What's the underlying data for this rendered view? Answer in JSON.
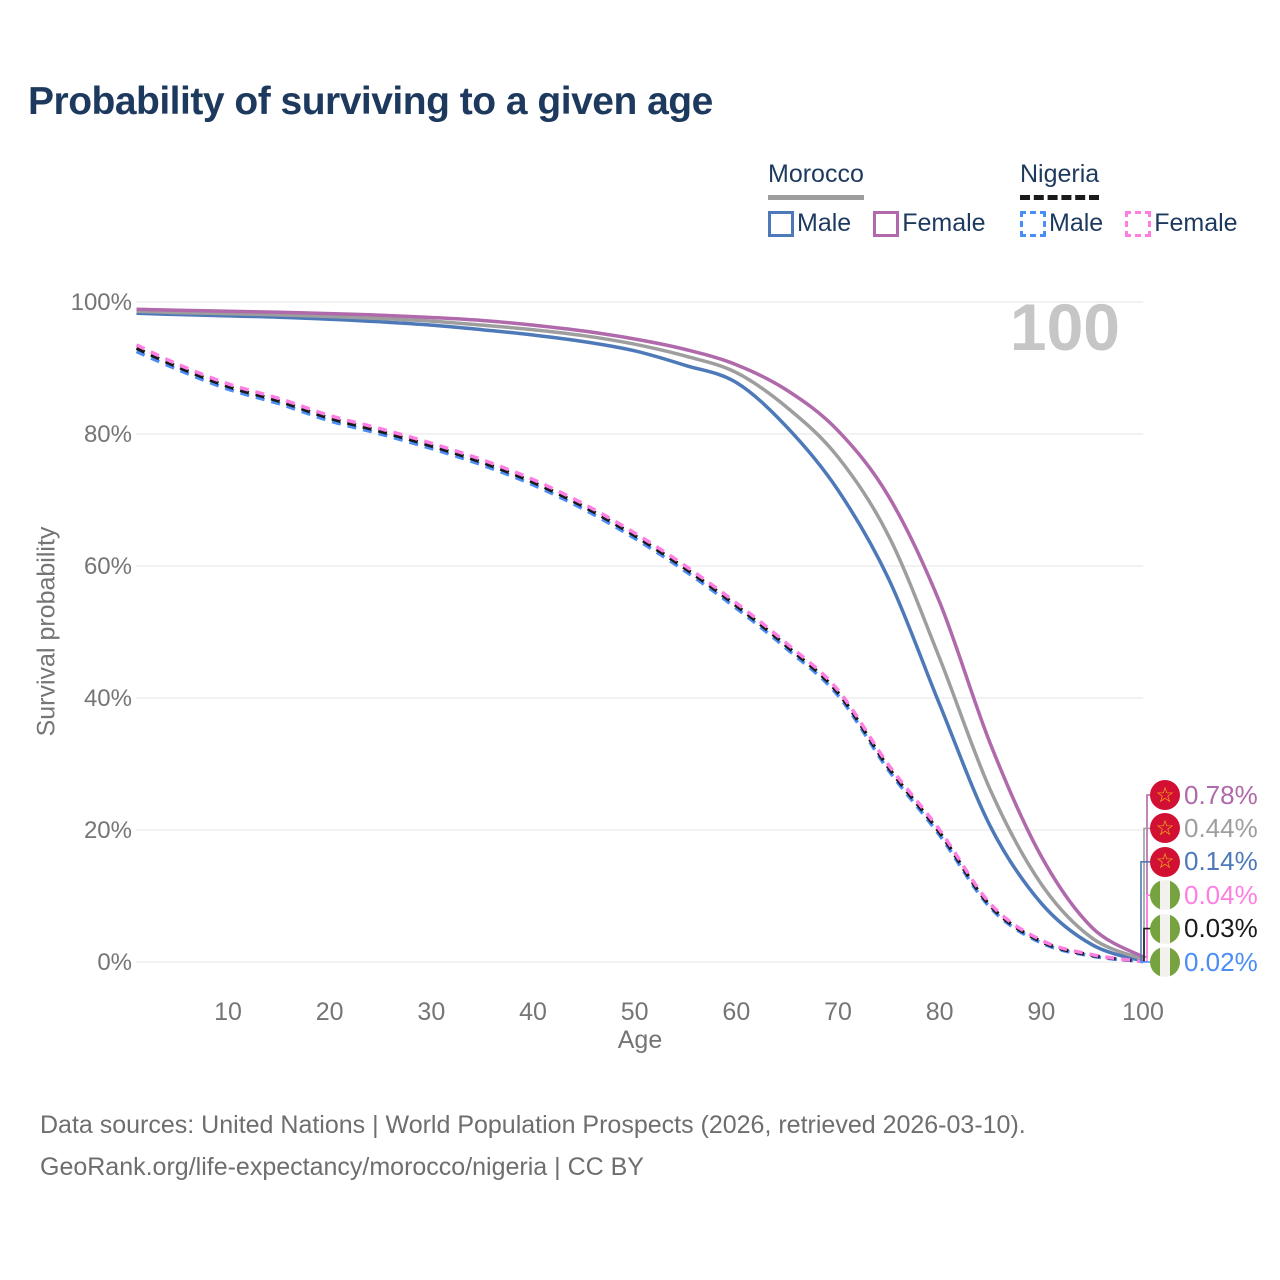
{
  "header": {
    "title": "Probability of surviving to a given age"
  },
  "watermark": "100",
  "legend": {
    "groups": [
      {
        "country": "Morocco",
        "line_style": "solid",
        "items": [
          {
            "label": "Male",
            "color": "#4e79b9"
          },
          {
            "label": "Female",
            "color": "#b069ab"
          }
        ]
      },
      {
        "country": "Nigeria",
        "line_style": "dashed",
        "items": [
          {
            "label": "Male",
            "color": "#4a8df5"
          },
          {
            "label": "Female",
            "color": "#ff7ee3"
          }
        ]
      }
    ]
  },
  "chart_data": {
    "type": "line",
    "title": "Probability of surviving to a given age",
    "xlabel": "Age",
    "ylabel": "Survival probability",
    "xlim": [
      1,
      100
    ],
    "ylim": [
      0,
      100
    ],
    "grid": "horizontal",
    "legend_position": "top-right",
    "x_tick_values": [
      10,
      20,
      30,
      40,
      50,
      60,
      70,
      80,
      90,
      100
    ],
    "x_tick_labels": [
      "10",
      "20",
      "30",
      "40",
      "50",
      "60",
      "70",
      "80",
      "90",
      "100"
    ],
    "y_ticks": [
      0,
      20,
      40,
      60,
      80,
      100
    ],
    "y_tick_labels": [
      "0%",
      "20%",
      "40%",
      "60%",
      "80%",
      "100%"
    ],
    "x": [
      1,
      5,
      10,
      15,
      20,
      25,
      30,
      35,
      40,
      45,
      50,
      55,
      60,
      65,
      70,
      75,
      80,
      85,
      90,
      95,
      100
    ],
    "series": [
      {
        "name": "Morocco Male",
        "country": "Morocco",
        "sex": "Male",
        "style": "solid",
        "color": "#4e79b9",
        "end_value": "0.14%",
        "values": [
          98.3,
          98.1,
          97.9,
          97.7,
          97.4,
          97.0,
          96.5,
          95.8,
          95.0,
          94.0,
          92.6,
          90.4,
          87.8,
          81.0,
          71.5,
          58.0,
          39.0,
          20.5,
          8.9,
          2.6,
          0.14
        ]
      },
      {
        "name": "Morocco Total",
        "country": "Morocco",
        "sex": "Both",
        "style": "solid",
        "color": "#9e9e9e",
        "end_value": "0.44%",
        "values": [
          98.6,
          98.4,
          98.25,
          98.05,
          97.8,
          97.5,
          97.1,
          96.5,
          95.8,
          94.9,
          93.6,
          91.8,
          89.3,
          84.0,
          76.5,
          64.5,
          46.0,
          26.0,
          11.8,
          3.6,
          0.44
        ]
      },
      {
        "name": "Morocco Female",
        "country": "Morocco",
        "sex": "Female",
        "style": "solid",
        "color": "#b069ab",
        "end_value": "0.78%",
        "values": [
          98.9,
          98.75,
          98.6,
          98.45,
          98.25,
          98.0,
          97.65,
          97.2,
          96.5,
          95.6,
          94.4,
          92.8,
          90.5,
          86.6,
          80.5,
          70.5,
          54.5,
          33.0,
          16.0,
          5.2,
          0.78
        ]
      },
      {
        "name": "Nigeria Male",
        "country": "Nigeria",
        "sex": "Male",
        "style": "dashed",
        "color": "#4a8df5",
        "end_value": "0.02%",
        "values": [
          92.5,
          89.8,
          86.8,
          84.6,
          82.0,
          80.0,
          77.8,
          75.3,
          72.3,
          68.6,
          64.2,
          59.2,
          53.6,
          47.4,
          40.4,
          29.0,
          19.2,
          8.2,
          2.9,
          0.9,
          0.02
        ]
      },
      {
        "name": "Nigeria Total",
        "country": "Nigeria",
        "sex": "Both",
        "style": "dashed",
        "color": "#1a1a1a",
        "end_value": "0.03%",
        "values": [
          93.0,
          90.2,
          87.2,
          85.0,
          82.4,
          80.4,
          78.2,
          75.7,
          72.7,
          69.0,
          64.6,
          59.6,
          54.0,
          47.8,
          40.8,
          29.4,
          19.6,
          8.5,
          3.1,
          1.0,
          0.03
        ]
      },
      {
        "name": "Nigeria Female",
        "country": "Nigeria",
        "sex": "Female",
        "style": "dashed",
        "color": "#ff7ee3",
        "end_value": "0.04%",
        "values": [
          93.5,
          90.6,
          87.6,
          85.4,
          82.8,
          80.8,
          78.6,
          76.1,
          73.1,
          69.4,
          65.0,
          60.0,
          54.4,
          48.2,
          41.2,
          29.8,
          20.0,
          8.8,
          3.3,
          1.1,
          0.04
        ]
      }
    ]
  },
  "end_labels": [
    {
      "value": "0.78%",
      "flag": "morocco",
      "color": "#b069ab",
      "series_index": 2
    },
    {
      "value": "0.44%",
      "flag": "morocco",
      "color": "#9e9e9e",
      "series_index": 1
    },
    {
      "value": "0.14%",
      "flag": "morocco",
      "color": "#4e79b9",
      "series_index": 0
    },
    {
      "value": "0.04%",
      "flag": "nigeria",
      "color": "#ff7ee3",
      "series_index": 5
    },
    {
      "value": "0.03%",
      "flag": "nigeria",
      "color": "#1a1a1a",
      "series_index": 4
    },
    {
      "value": "0.02%",
      "flag": "nigeria",
      "color": "#4a8df5",
      "series_index": 3
    }
  ],
  "footer": {
    "line1": "Data sources: United Nations | World Population Prospects (2026, retrieved 2026-03-10).",
    "line2": "GeoRank.org/life-expectancy/morocco/nigeria | CC BY"
  }
}
